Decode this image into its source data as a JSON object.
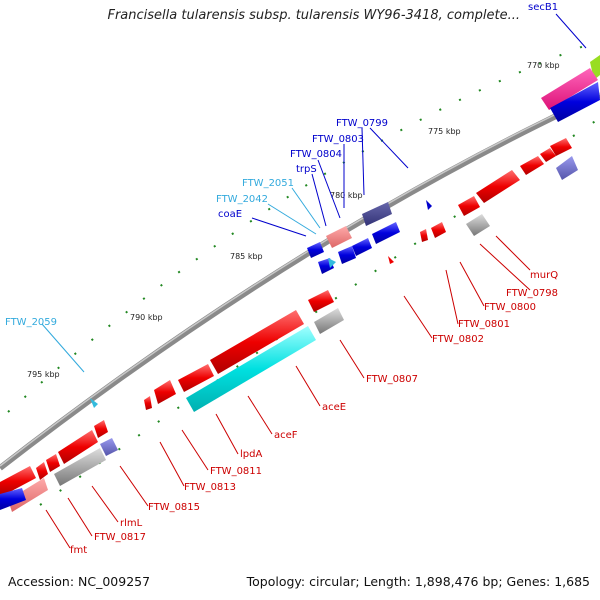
{
  "title": "Francisella tularensis subsp. tularensis WY96-3418, complete...",
  "footer": {
    "accession": "Accession: NC_009257",
    "summary": "Topology: circular; Length: 1,898,476 bp; Genes: 1,685"
  },
  "colors": {
    "backbone": "#8a8a8a",
    "forward": "#ee0000",
    "reverse_blue": "#0000dd",
    "rna": "#33bbdd",
    "other_gray": "#999999",
    "cyan_feature": "#00e0e0",
    "label_red": "#cc0000",
    "label_blue": "#0000cc",
    "label_cyan": "#33aadd"
  },
  "kbp_ticks": [
    {
      "label": "770 kbp"
    },
    {
      "label": "775 kbp"
    },
    {
      "label": "780 kbp"
    },
    {
      "label": "785 kbp"
    },
    {
      "label": "790 kbp"
    },
    {
      "label": "795 kbp"
    }
  ],
  "labels": [
    {
      "text": "secB1",
      "color": "blue"
    },
    {
      "text": "FTW_0799",
      "color": "blue"
    },
    {
      "text": "FTW_0803",
      "color": "blue"
    },
    {
      "text": "FTW_0804",
      "color": "blue"
    },
    {
      "text": "trpS",
      "color": "blue"
    },
    {
      "text": "FTW_2051",
      "color": "cyan"
    },
    {
      "text": "FTW_2042",
      "color": "cyan"
    },
    {
      "text": "coaE",
      "color": "blue"
    },
    {
      "text": "FTW_2059",
      "color": "cyan"
    },
    {
      "text": "murQ",
      "color": "red"
    },
    {
      "text": "FTW_0798",
      "color": "red"
    },
    {
      "text": "FTW_0800",
      "color": "red"
    },
    {
      "text": "FTW_0801",
      "color": "red"
    },
    {
      "text": "FTW_0802",
      "color": "red"
    },
    {
      "text": "FTW_0807",
      "color": "red"
    },
    {
      "text": "aceE",
      "color": "red"
    },
    {
      "text": "aceF",
      "color": "red"
    },
    {
      "text": "lpdA",
      "color": "red"
    },
    {
      "text": "FTW_0811",
      "color": "red"
    },
    {
      "text": "FTW_0813",
      "color": "red"
    },
    {
      "text": "FTW_0815",
      "color": "red"
    },
    {
      "text": "rlmL",
      "color": "red"
    },
    {
      "text": "FTW_0817",
      "color": "red"
    },
    {
      "text": "fmt",
      "color": "red"
    }
  ]
}
